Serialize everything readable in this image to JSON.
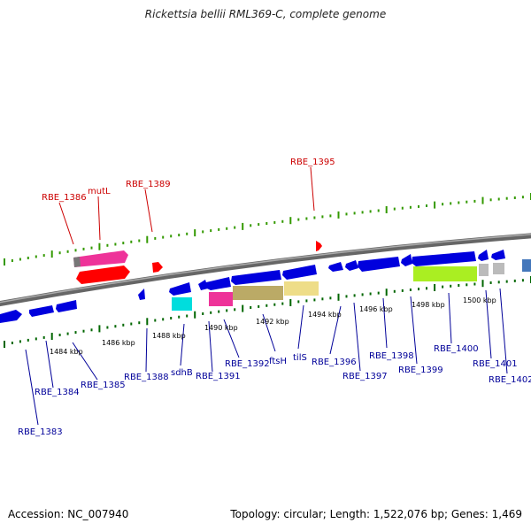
{
  "title": "Rickettsia bellii RML369-C, complete genome",
  "footer": {
    "accession": "Accession: NC_007940",
    "summary": "Topology: circular; Length: 1,522,076 bp; Genes: 1,469"
  },
  "colors": {
    "forward_label": "#cc0000",
    "reverse_label": "#000099",
    "forward_tick": "#339900",
    "reverse_tick": "#006600",
    "backbone": "#888888",
    "cds_blue": "#0000dd",
    "cds_red": "#ff0000",
    "rna_pink": "#ee3399",
    "rna_grey": "#777777",
    "rna_cyan": "#00dddd",
    "rna_olive": "#bbaa66",
    "rna_khaki": "#eedd88",
    "rna_lime": "#aaee22",
    "rna_silver": "#bbbbbb",
    "rna_steel": "#4477bb"
  },
  "scale_labels": [
    "1484 kbp",
    "1486 kbp",
    "1488 kbp",
    "1490 kbp",
    "1492 kbp",
    "1494 kbp",
    "1496 kbp",
    "1498 kbp",
    "1500 kbp"
  ],
  "forward_labels": [
    "RBE_1386",
    "mutL",
    "RBE_1389",
    "RBE_1395"
  ],
  "reverse_labels": [
    "RBE_1383",
    "RBE_1384",
    "RBE_1385",
    "RBE_1388",
    "sdhB",
    "RBE_1391",
    "RBE_1392",
    "ftsH",
    "tilS",
    "RBE_1396",
    "RBE_1397",
    "RBE_1398",
    "RBE_1399",
    "RBE_1400",
    "RBE_1401",
    "RBE_1402"
  ]
}
